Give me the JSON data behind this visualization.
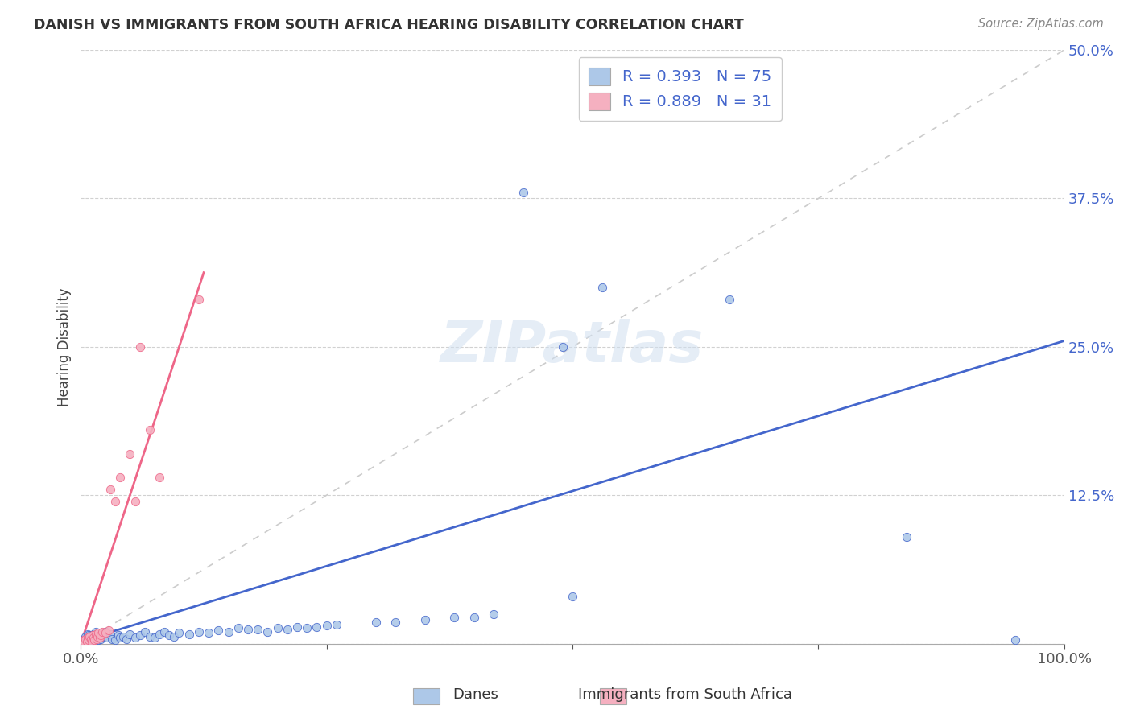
{
  "title": "DANISH VS IMMIGRANTS FROM SOUTH AFRICA HEARING DISABILITY CORRELATION CHART",
  "source": "Source: ZipAtlas.com",
  "ylabel": "Hearing Disability",
  "dane_color": "#adc8e8",
  "dane_line_color": "#4466cc",
  "immigrant_color": "#f5b0c0",
  "immigrant_line_color": "#ee6688",
  "diag_line_color": "#cccccc",
  "R_dane": 0.393,
  "N_dane": 75,
  "R_immigrant": 0.889,
  "N_immigrant": 31,
  "xlim": [
    0.0,
    1.0
  ],
  "ylim": [
    0.0,
    0.5
  ],
  "xticks": [
    0.0,
    0.25,
    0.5,
    0.75,
    1.0
  ],
  "xticklabels": [
    "0.0%",
    "",
    "",
    "",
    "100.0%"
  ],
  "yticks": [
    0.0,
    0.125,
    0.25,
    0.375,
    0.5
  ],
  "yticklabels": [
    "",
    "12.5%",
    "25.0%",
    "37.5%",
    "50.0%"
  ],
  "danes_x": [
    0.002,
    0.003,
    0.004,
    0.005,
    0.005,
    0.006,
    0.007,
    0.007,
    0.008,
    0.008,
    0.009,
    0.01,
    0.01,
    0.011,
    0.012,
    0.013,
    0.014,
    0.015,
    0.015,
    0.016,
    0.017,
    0.018,
    0.019,
    0.02,
    0.022,
    0.023,
    0.025,
    0.027,
    0.03,
    0.032,
    0.035,
    0.038,
    0.04,
    0.043,
    0.046,
    0.05,
    0.055,
    0.06,
    0.065,
    0.07,
    0.075,
    0.08,
    0.085,
    0.09,
    0.095,
    0.1,
    0.11,
    0.12,
    0.13,
    0.14,
    0.15,
    0.16,
    0.17,
    0.18,
    0.19,
    0.2,
    0.21,
    0.22,
    0.23,
    0.24,
    0.25,
    0.26,
    0.3,
    0.32,
    0.35,
    0.38,
    0.4,
    0.42,
    0.45,
    0.49,
    0.5,
    0.53,
    0.66,
    0.84,
    0.95
  ],
  "danes_y": [
    0.002,
    0.004,
    0.003,
    0.001,
    0.006,
    0.002,
    0.005,
    0.008,
    0.003,
    0.007,
    0.004,
    0.002,
    0.007,
    0.005,
    0.003,
    0.008,
    0.004,
    0.006,
    0.01,
    0.005,
    0.008,
    0.003,
    0.007,
    0.004,
    0.009,
    0.006,
    0.01,
    0.005,
    0.008,
    0.004,
    0.003,
    0.007,
    0.005,
    0.006,
    0.004,
    0.008,
    0.005,
    0.007,
    0.01,
    0.006,
    0.005,
    0.008,
    0.01,
    0.007,
    0.006,
    0.009,
    0.008,
    0.01,
    0.009,
    0.011,
    0.01,
    0.013,
    0.012,
    0.012,
    0.01,
    0.013,
    0.012,
    0.014,
    0.013,
    0.014,
    0.015,
    0.016,
    0.018,
    0.018,
    0.02,
    0.022,
    0.022,
    0.025,
    0.38,
    0.25,
    0.04,
    0.3,
    0.29,
    0.09,
    0.003
  ],
  "immigrants_x": [
    0.002,
    0.003,
    0.004,
    0.005,
    0.006,
    0.007,
    0.008,
    0.009,
    0.01,
    0.011,
    0.012,
    0.013,
    0.014,
    0.015,
    0.016,
    0.017,
    0.018,
    0.019,
    0.02,
    0.022,
    0.025,
    0.028,
    0.03,
    0.035,
    0.04,
    0.05,
    0.055,
    0.06,
    0.07,
    0.08,
    0.12
  ],
  "immigrants_y": [
    0.002,
    0.003,
    0.001,
    0.004,
    0.002,
    0.005,
    0.003,
    0.006,
    0.004,
    0.002,
    0.007,
    0.005,
    0.003,
    0.008,
    0.004,
    0.006,
    0.009,
    0.005,
    0.007,
    0.01,
    0.009,
    0.011,
    0.13,
    0.12,
    0.14,
    0.16,
    0.12,
    0.25,
    0.18,
    0.14,
    0.29
  ]
}
